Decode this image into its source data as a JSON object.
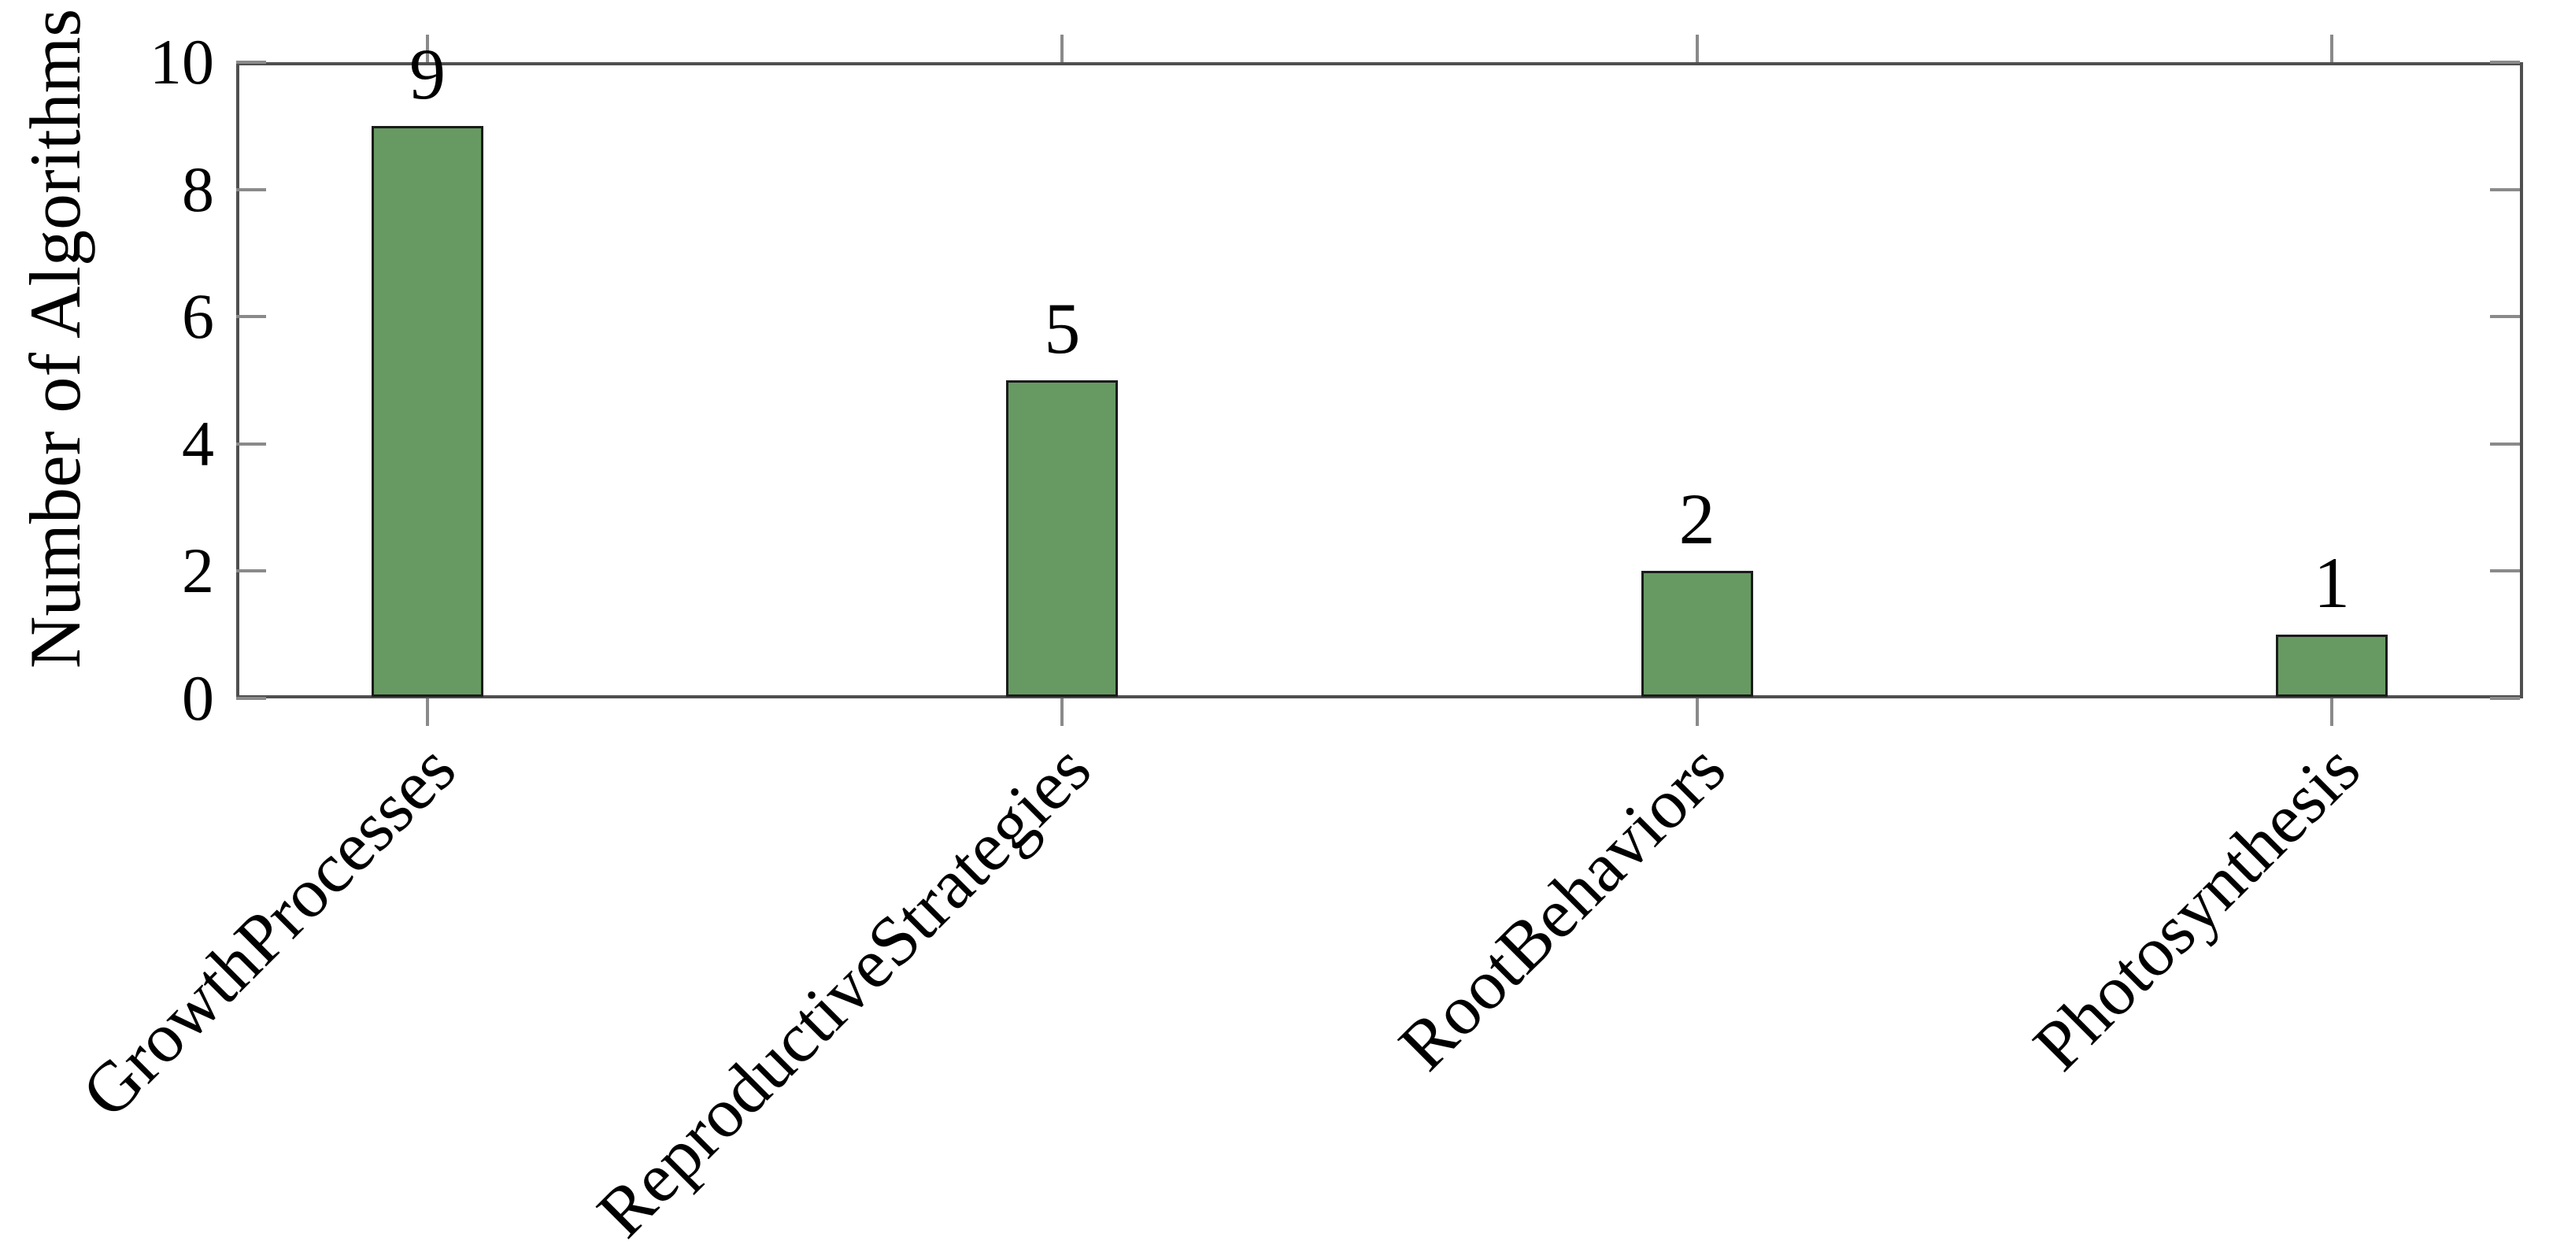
{
  "chart_data": {
    "type": "bar",
    "title": "",
    "xlabel": "",
    "ylabel": "Number of Algorithms",
    "categories": [
      "GrowthProcesses",
      "ReproductiveStrategies",
      "RootBehaviors",
      "Photosynthesis"
    ],
    "values": [
      9,
      5,
      2,
      1
    ],
    "bar_value_labels": [
      "9",
      "5",
      "2",
      "1"
    ],
    "ylim": [
      0,
      10
    ],
    "y_ticks": [
      0,
      2,
      4,
      6,
      8,
      10
    ],
    "y_tick_labels": [
      "0",
      "2",
      "4",
      "6",
      "8",
      "10"
    ],
    "grid": false,
    "legend_position": "none",
    "x_tick_label_rotation_deg": 45,
    "colors": {
      "bar_fill": "#679a62",
      "bar_border": "#1b1b1b",
      "axis_frame": "#4f4f4f",
      "tick_mark": "#8a8a8a",
      "text": "#000000",
      "background": "#ffffff"
    }
  }
}
